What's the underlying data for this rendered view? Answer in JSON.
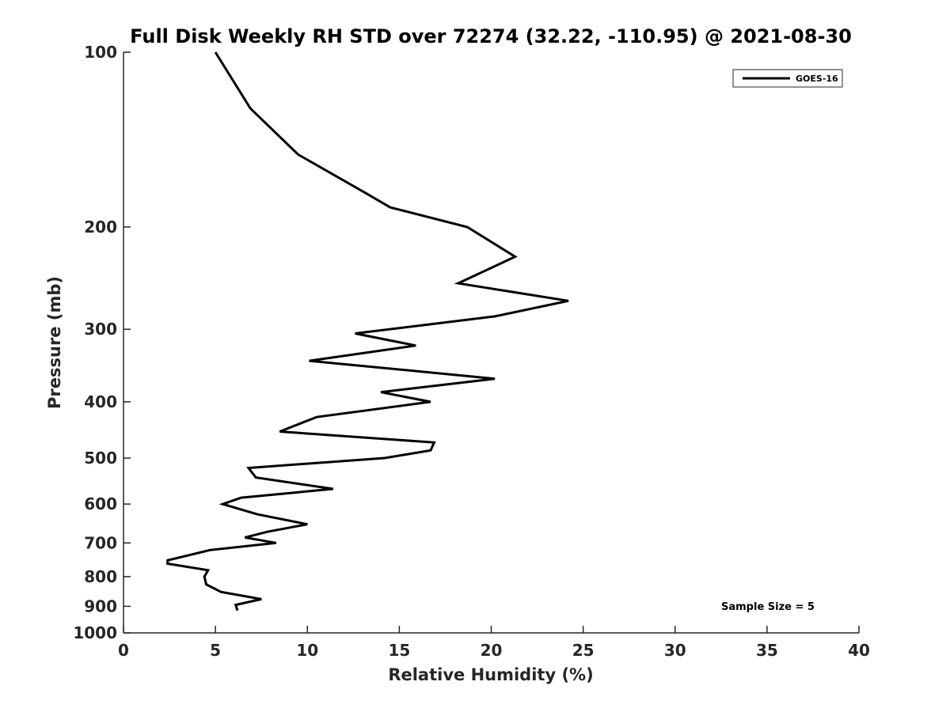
{
  "chart_data": {
    "type": "line",
    "title": "Full Disk Weekly RH STD over 72274 (32.22, -110.95) @ 2021-08-30",
    "xlabel": "Relative Humidity (%)",
    "ylabel": "Pressure (mb)",
    "xlim": [
      0,
      40
    ],
    "ylim": [
      100,
      1000
    ],
    "y_scale": "log",
    "y_reversed": true,
    "x_ticks": [
      0,
      5,
      10,
      15,
      20,
      25,
      30,
      35,
      40
    ],
    "y_ticks": [
      100,
      200,
      300,
      400,
      500,
      600,
      700,
      800,
      900,
      1000
    ],
    "grid": false,
    "legend_position": "top-right",
    "series": [
      {
        "name": "GOES-16",
        "color": "#000000",
        "points": [
          [
            5.0,
            100
          ],
          [
            6.9,
            125
          ],
          [
            9.5,
            150
          ],
          [
            13.2,
            175
          ],
          [
            14.5,
            185
          ],
          [
            18.7,
            200
          ],
          [
            21.3,
            225
          ],
          [
            18.2,
            250
          ],
          [
            24.2,
            268
          ],
          [
            20.2,
            285
          ],
          [
            12.6,
            305
          ],
          [
            15.9,
            320
          ],
          [
            10.1,
            340
          ],
          [
            20.2,
            365
          ],
          [
            14.0,
            385
          ],
          [
            16.7,
            400
          ],
          [
            10.5,
            425
          ],
          [
            8.5,
            450
          ],
          [
            16.9,
            470
          ],
          [
            16.7,
            485
          ],
          [
            14.2,
            500
          ],
          [
            6.8,
            520
          ],
          [
            7.2,
            540
          ],
          [
            11.4,
            565
          ],
          [
            6.4,
            585
          ],
          [
            5.4,
            600
          ],
          [
            7.3,
            625
          ],
          [
            10.0,
            650
          ],
          [
            7.8,
            670
          ],
          [
            6.6,
            685
          ],
          [
            8.3,
            700
          ],
          [
            4.7,
            720
          ],
          [
            2.4,
            750
          ],
          [
            2.4,
            760
          ],
          [
            4.6,
            780
          ],
          [
            4.4,
            800
          ],
          [
            4.5,
            825
          ],
          [
            5.3,
            850
          ],
          [
            7.5,
            875
          ],
          [
            6.1,
            895
          ],
          [
            6.2,
            915
          ]
        ]
      }
    ],
    "annotations": [
      "Sample Size = 5"
    ]
  }
}
